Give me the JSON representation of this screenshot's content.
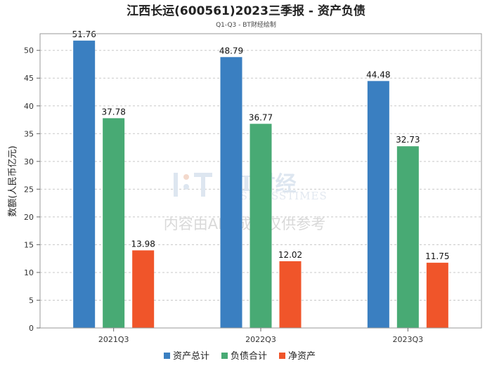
{
  "chart_data": {
    "type": "bar",
    "title": "江西长运(600561)2023三季报 - 资产负债",
    "subtitle": "Q1-Q3 - BT财经绘制",
    "xlabel": "",
    "ylabel": "数额(人民币亿元)",
    "categories": [
      "2021Q3",
      "2022Q3",
      "2023Q3"
    ],
    "series": [
      {
        "name": "资产总计",
        "color": "#3a7fc1",
        "values": [
          51.76,
          48.79,
          44.48
        ]
      },
      {
        "name": "负债合计",
        "color": "#48aa74",
        "values": [
          37.78,
          36.77,
          32.73
        ]
      },
      {
        "name": "净资产",
        "color": "#f0552a",
        "values": [
          13.98,
          12.02,
          11.75
        ]
      }
    ],
    "ylim": [
      0,
      53
    ],
    "yticks": [
      0,
      5,
      10,
      15,
      20,
      25,
      30,
      35,
      40,
      45,
      50
    ],
    "grid": true,
    "legend_position": "bottom-center"
  },
  "watermark": {
    "logo_text": "BT财经",
    "logo_sub": "BUSINESSTIMES",
    "notice": "内容由AI生成，仅供参考"
  }
}
